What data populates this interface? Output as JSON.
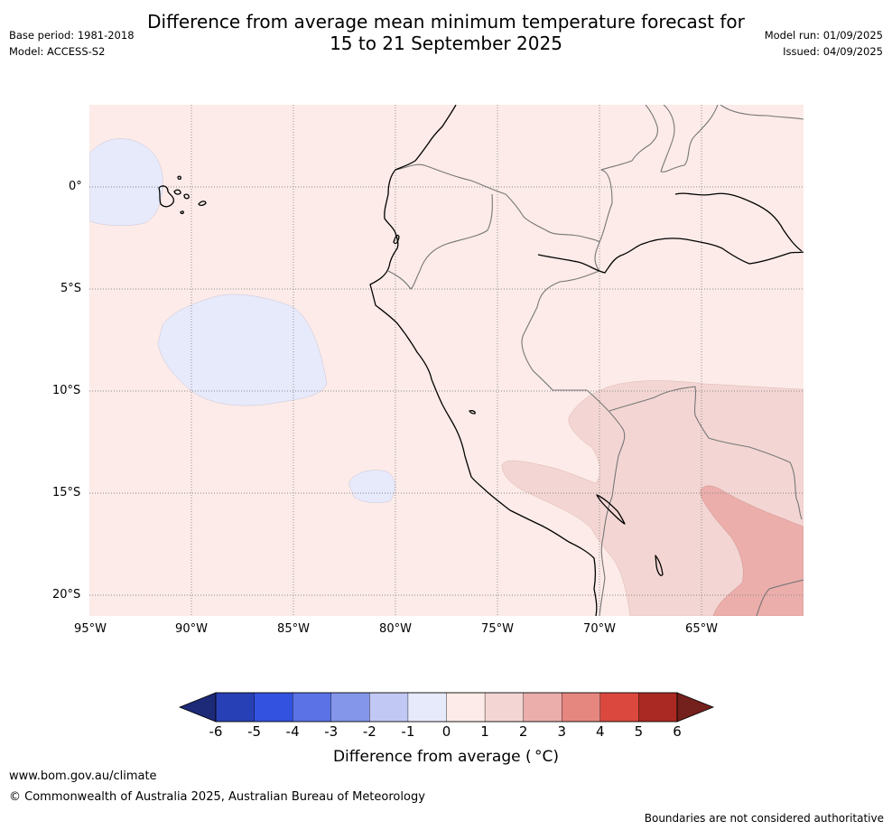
{
  "title": {
    "line1": "Difference from average mean minimum temperature forecast for",
    "line2": "15 to 21 September 2025"
  },
  "meta_left": {
    "base_period": "Base period: 1981-2018",
    "model": "Model: ACCESS-S2"
  },
  "meta_right": {
    "model_run": "Model run: 01/09/2025",
    "issued": "Issued: 04/09/2025"
  },
  "map": {
    "region": "western South America and eastern Pacific",
    "latitude_labels": [
      "0°",
      "5°S",
      "10°S",
      "15°S",
      "20°S"
    ],
    "longitude_labels": [
      "95°W",
      "90°W",
      "85°W",
      "80°W",
      "75°W",
      "70°W",
      "65°W"
    ],
    "lon_range": [
      -95,
      -60
    ],
    "lat_range": [
      -21,
      4
    ],
    "gridlines": true,
    "background_anomaly_class": "0 to 1"
  },
  "colorbar": {
    "title": "Difference from average ($^\\circ$C)",
    "tick_labels": [
      "-6",
      "-5",
      "-4",
      "-3",
      "-2",
      "-1",
      "0",
      "1",
      "2",
      "3",
      "4",
      "5",
      "6"
    ],
    "colors": [
      "#1c2a78",
      "#2840b5",
      "#3452e0",
      "#5a72e6",
      "#8496ea",
      "#c2c8f4",
      "#e7eafb",
      "#fcebe8",
      "#f3d6d3",
      "#ebaeab",
      "#e6877f",
      "#db493e",
      "#aa2a23",
      "#74201c"
    ],
    "extend": "both"
  },
  "footer": {
    "url": "www.bom.gov.au/climate",
    "copyright": "© Commonwealth of Australia 2025, Australian Bureau of Meteorology",
    "note": "Boundaries are not considered authoritative"
  }
}
